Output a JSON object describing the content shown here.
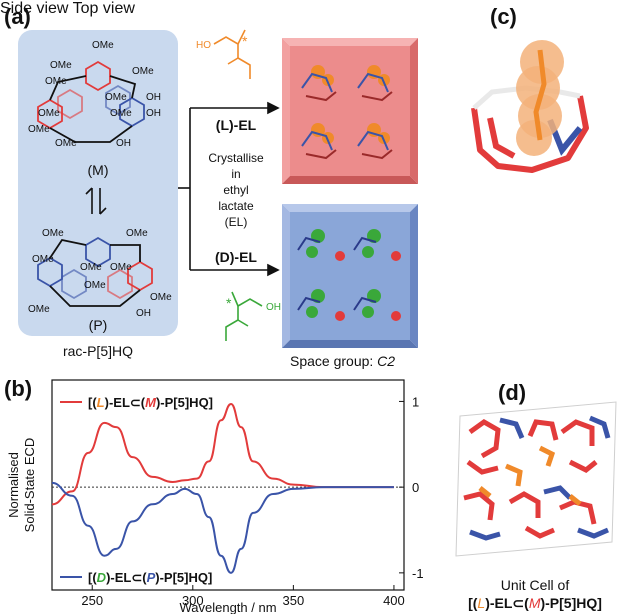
{
  "panels": {
    "a": "(a)",
    "b": "(b)",
    "c": "(c)",
    "d": "(d)"
  },
  "panel_a": {
    "hq_label_m": "(M)",
    "hq_label_p": "(P)",
    "compound": "rac-P[5]HQ",
    "substituent_ome": "OMe",
    "substituent_oh": "OH",
    "le_label": "(L)-EL",
    "de_label": "(D)-EL",
    "crystallise_lines": [
      "Crystallise",
      "in",
      "ethyl",
      "lactate",
      "(EL)"
    ],
    "space_group_text": "Space group: ",
    "space_group_value": "C2",
    "ho_label": "HO",
    "oh_label": "OH",
    "chiral_star": "*"
  },
  "panel_c": {
    "side_view": "Side view",
    "top_view": "Top view"
  },
  "panel_d": {
    "caption_line1": "Unit Cell of",
    "caption_line2": "[(L)-EL⊂(M)-P[5]HQ]"
  },
  "colors": {
    "red": "#e23b3b",
    "blue": "#3a54a8",
    "orange": "#f08a2a",
    "green": "#3aa83a",
    "panel_blue": "#c9d9ee",
    "crystal_red": "#ec8c8c",
    "crystal_blue": "#8aa6d8"
  },
  "chart_data": {
    "type": "line",
    "ylabel": "Normalised Solid-State ECD",
    "xlabel": "Wavelength / nm",
    "xlim": [
      230,
      405
    ],
    "ylim": [
      -1.2,
      1.25
    ],
    "x_ticks": [
      250,
      300,
      350,
      400
    ],
    "y_ticks": [
      1,
      0,
      -1
    ],
    "zero_line": "dotted",
    "legend_position": "inside-top-left / bottom-left",
    "series": [
      {
        "name": "[(L)-EL⊂(M)-P[5]HQ]",
        "color": "#e23b3b",
        "x": [
          230,
          240,
          248,
          256,
          262,
          270,
          280,
          290,
          296,
          302,
          308,
          314,
          319,
          324,
          330,
          340,
          350,
          365,
          380,
          400
        ],
        "y": [
          -0.2,
          -0.05,
          0.4,
          0.75,
          0.7,
          0.35,
          0.12,
          0.06,
          0.08,
          0.1,
          0.3,
          0.78,
          0.97,
          0.7,
          0.3,
          0.1,
          0.03,
          0.0,
          0.0,
          0.0
        ]
      },
      {
        "name": "[(D)-EL⊂(P)-P[5]HQ]",
        "color": "#3a54a8",
        "x": [
          230,
          240,
          248,
          256,
          262,
          270,
          280,
          290,
          296,
          302,
          308,
          314,
          319,
          324,
          330,
          340,
          350,
          365,
          380,
          400
        ],
        "y": [
          0.05,
          -0.1,
          -0.45,
          -0.8,
          -0.72,
          -0.4,
          -0.2,
          -0.08,
          -0.02,
          -0.08,
          -0.35,
          -0.8,
          -1.0,
          -0.72,
          -0.3,
          -0.08,
          -0.02,
          0.0,
          0.0,
          0.0
        ]
      }
    ]
  }
}
